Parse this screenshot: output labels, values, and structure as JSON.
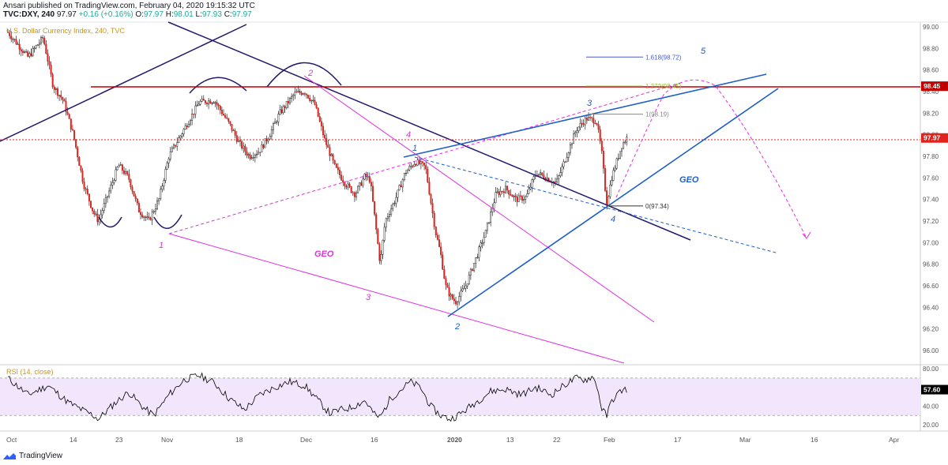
{
  "header": {
    "published_line": "Ansari published on TradingView.com, February 04, 2020 19:15:32 UTC",
    "symbol": "TVC:DXY, 240",
    "last": "97.97",
    "change": "+0.16 (+0.16%)",
    "o_label": "O:",
    "o_value": "97.97",
    "h_label": "H:",
    "h_value": "98.01",
    "l_label": "L:",
    "l_value": "97.93",
    "c_label": "C:",
    "c_value": "97.97"
  },
  "footer": {
    "brand": "TradingView"
  },
  "colors": {
    "candle_up": "#ffffff",
    "candle_down": "#e0231c",
    "candle_border": "#000000",
    "navy": "#231a6b",
    "magenta": "#e030e0",
    "blue": "#1e5fc8",
    "red_line": "#c00000",
    "rsi_band": "#f1e6fb",
    "rsi_line": "#000000",
    "last_price_bg": "#e0231c"
  },
  "chart_data": [
    {
      "type": "candlestick",
      "title": "U.S. Dollar Currency Index, 240, TVC",
      "x_tick_labels": [
        "Oct",
        "14",
        "23",
        "Nov",
        "18",
        "Dec",
        "16",
        "2020",
        "13",
        "22",
        "Feb",
        "17",
        "Mar",
        "16",
        "Apr"
      ],
      "y_tick_labels": [
        "99.00",
        "98.80",
        "98.60",
        "98.40",
        "98.20",
        "98.00",
        "97.80",
        "97.60",
        "97.40",
        "97.20",
        "97.00",
        "96.80",
        "96.60",
        "96.40",
        "96.20",
        "96.00"
      ],
      "ylim": [
        95.96,
        99.06
      ],
      "price_path": [
        [
          0,
          98.95
        ],
        [
          4,
          98.72
        ],
        [
          7,
          98.9
        ],
        [
          9,
          98.45
        ],
        [
          11,
          98.32
        ],
        [
          13,
          98.0
        ],
        [
          15,
          97.55
        ],
        [
          17,
          97.28
        ],
        [
          18,
          97.2
        ],
        [
          20,
          97.46
        ],
        [
          22,
          97.72
        ],
        [
          24,
          97.6
        ],
        [
          26,
          97.3
        ],
        [
          28,
          97.2
        ],
        [
          30,
          97.4
        ],
        [
          32,
          97.8
        ],
        [
          35,
          98.05
        ],
        [
          38,
          98.3
        ],
        [
          41,
          98.32
        ],
        [
          44,
          98.1
        ],
        [
          46,
          97.92
        ],
        [
          48,
          97.8
        ],
        [
          50,
          97.85
        ],
        [
          52,
          98.0
        ],
        [
          54,
          98.2
        ],
        [
          57,
          98.38
        ],
        [
          59,
          98.4
        ],
        [
          61,
          98.28
        ],
        [
          63,
          97.95
        ],
        [
          65,
          97.7
        ],
        [
          67,
          97.55
        ],
        [
          69,
          97.45
        ],
        [
          71,
          97.62
        ],
        [
          72,
          97.58
        ],
        [
          73,
          97.2
        ],
        [
          74,
          96.8
        ],
        [
          75,
          97.2
        ],
        [
          77,
          97.4
        ],
        [
          79,
          97.65
        ],
        [
          81,
          97.75
        ],
        [
          83,
          97.7
        ],
        [
          84,
          97.4
        ],
        [
          85,
          97.1
        ],
        [
          86,
          96.9
        ],
        [
          87,
          96.6
        ],
        [
          88,
          96.5
        ],
        [
          89,
          96.45
        ],
        [
          91,
          96.6
        ],
        [
          93,
          96.85
        ],
        [
          95,
          97.1
        ],
        [
          97,
          97.45
        ],
        [
          99,
          97.5
        ],
        [
          101,
          97.4
        ],
        [
          103,
          97.42
        ],
        [
          105,
          97.65
        ],
        [
          107,
          97.6
        ],
        [
          109,
          97.55
        ],
        [
          111,
          97.8
        ],
        [
          113,
          98.05
        ],
        [
          115,
          98.15
        ],
        [
          117,
          98.13
        ],
        [
          118,
          97.85
        ],
        [
          119,
          97.36
        ],
        [
          120,
          97.6
        ],
        [
          122,
          97.9
        ],
        [
          123,
          97.97
        ]
      ],
      "key_levels": [
        {
          "label": "1.618(98.72)",
          "value": 98.72
        },
        {
          "label": "1.272(98.45)",
          "value": 98.45
        },
        {
          "label": "1(98.19)",
          "value": 98.19
        },
        {
          "label": "0(97.34)",
          "value": 97.34
        }
      ],
      "price_tags": [
        {
          "label": "98.45",
          "value": 98.45
        },
        {
          "label": "97.97",
          "value": 97.97
        }
      ],
      "wave_labels_magenta": [
        "1",
        "2",
        "3",
        "4"
      ],
      "wave_labels_blue": [
        "1",
        "2",
        "3",
        "4",
        "5"
      ],
      "annotations": [
        "GEO",
        "GEO"
      ]
    },
    {
      "type": "line",
      "title": "RSI (14, close)",
      "y_tick_labels": [
        "80.00",
        "60.00",
        "40.00",
        "20.00"
      ],
      "ylim": [
        16,
        82
      ],
      "band": [
        30,
        70
      ],
      "last_value": "57.60",
      "rsi_path": [
        [
          0,
          70
        ],
        [
          4,
          52
        ],
        [
          8,
          62
        ],
        [
          12,
          44
        ],
        [
          14,
          38
        ],
        [
          17,
          30
        ],
        [
          18,
          26
        ],
        [
          21,
          42
        ],
        [
          24,
          55
        ],
        [
          27,
          38
        ],
        [
          29,
          30
        ],
        [
          32,
          52
        ],
        [
          35,
          68
        ],
        [
          38,
          73
        ],
        [
          41,
          65
        ],
        [
          44,
          48
        ],
        [
          47,
          36
        ],
        [
          50,
          52
        ],
        [
          53,
          60
        ],
        [
          56,
          66
        ],
        [
          59,
          62
        ],
        [
          62,
          44
        ],
        [
          64,
          32
        ],
        [
          66,
          36
        ],
        [
          68,
          38
        ],
        [
          71,
          46
        ],
        [
          73,
          30
        ],
        [
          74,
          28
        ],
        [
          76,
          48
        ],
        [
          78,
          57
        ],
        [
          80,
          66
        ],
        [
          82,
          60
        ],
        [
          84,
          40
        ],
        [
          86,
          30
        ],
        [
          88,
          26
        ],
        [
          90,
          32
        ],
        [
          93,
          44
        ],
        [
          96,
          56
        ],
        [
          99,
          58
        ],
        [
          102,
          52
        ],
        [
          105,
          60
        ],
        [
          108,
          52
        ],
        [
          111,
          64
        ],
        [
          113,
          70
        ],
        [
          115,
          68
        ],
        [
          116,
          72
        ],
        [
          117,
          64
        ],
        [
          118,
          38
        ],
        [
          119,
          29
        ],
        [
          120,
          46
        ],
        [
          122,
          57
        ],
        [
          123,
          58
        ]
      ]
    }
  ]
}
